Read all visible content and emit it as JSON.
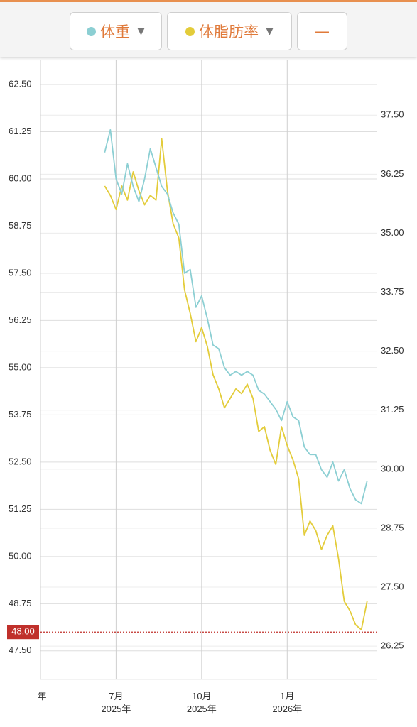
{
  "toolbar": {
    "button": "—"
  },
  "chart_data": {
    "type": "line",
    "categories": [
      "年",
      null,
      null,
      null,
      null,
      null,
      null,
      null,
      null,
      null,
      null,
      null,
      null,
      "7月\n2025年",
      null,
      null,
      null,
      null,
      null,
      null,
      null,
      null,
      null,
      null,
      null,
      null,
      null,
      null,
      "10月\n2025年",
      null,
      null,
      null,
      null,
      null,
      null,
      null,
      null,
      null,
      null,
      null,
      null,
      null,
      null,
      "1月\n2026年",
      null,
      null,
      null,
      null,
      null,
      null,
      null,
      null,
      null,
      null,
      null,
      null,
      null,
      null,
      null
    ],
    "series": [
      {
        "name": "体重",
        "color": "#8ccfd3",
        "values": [
          null,
          null,
          null,
          null,
          null,
          null,
          null,
          null,
          null,
          null,
          null,
          60.7,
          61.3,
          60.0,
          59.6,
          60.4,
          59.8,
          59.4,
          60.0,
          60.8,
          60.3,
          59.8,
          59.6,
          59.1,
          58.8,
          57.5,
          57.6,
          56.6,
          56.9,
          56.3,
          55.6,
          55.5,
          55.0,
          54.8,
          54.9,
          54.8,
          54.9,
          54.8,
          54.4,
          54.3,
          54.1,
          53.9,
          53.6,
          54.1,
          53.7,
          53.6,
          52.9,
          52.7,
          52.7,
          52.3,
          52.1,
          52.5,
          52.0,
          52.3,
          51.8,
          51.5,
          51.4,
          52.0,
          null
        ]
      },
      {
        "name": "体脂肪率",
        "color": "#e3cc3a",
        "axis": "y2",
        "values": [
          null,
          null,
          null,
          null,
          null,
          null,
          null,
          null,
          null,
          null,
          null,
          36.0,
          35.8,
          35.5,
          36.0,
          35.7,
          36.3,
          35.9,
          35.6,
          35.8,
          35.7,
          37.0,
          35.9,
          35.2,
          34.9,
          33.8,
          33.3,
          32.7,
          33.0,
          32.6,
          32.0,
          31.7,
          31.3,
          31.5,
          31.7,
          31.6,
          31.8,
          31.5,
          30.8,
          30.9,
          30.4,
          30.1,
          30.9,
          30.5,
          30.2,
          29.8,
          28.6,
          28.9,
          28.7,
          28.3,
          28.6,
          28.8,
          28.1,
          27.2,
          27.0,
          26.7,
          26.6,
          27.2,
          null
        ]
      }
    ],
    "ylim": [
      46.75,
      63.0
    ],
    "yticks": [
      {
        "value": 47.5,
        "label": "47.50"
      },
      {
        "value": 48.75,
        "label": "48.75"
      },
      {
        "value": 50,
        "label": "50.00"
      },
      {
        "value": 51.25,
        "label": "51.25"
      },
      {
        "value": 52.5,
        "label": "52.50"
      },
      {
        "value": 53.75,
        "label": "53.75"
      },
      {
        "value": 55,
        "label": "55.00"
      },
      {
        "value": 56.25,
        "label": "56.25"
      },
      {
        "value": 57.5,
        "label": "57.50"
      },
      {
        "value": 58.75,
        "label": "58.75"
      },
      {
        "value": 60,
        "label": "60.00"
      },
      {
        "value": 61.25,
        "label": "61.25"
      },
      {
        "value": 62.5,
        "label": "62.50"
      }
    ],
    "y2lim": [
      25.55,
      38.55
    ],
    "y2ticks": [
      {
        "value": 26.25,
        "label": "26.25"
      },
      {
        "value": 27.5,
        "label": "27.50"
      },
      {
        "value": 28.75,
        "label": "28.75"
      },
      {
        "value": 30,
        "label": "30.00"
      },
      {
        "value": 31.25,
        "label": "31.25"
      },
      {
        "value": 32.5,
        "label": "32.50"
      },
      {
        "value": 33.75,
        "label": "33.75"
      },
      {
        "value": 35,
        "label": "35.00"
      },
      {
        "value": 36.25,
        "label": "36.25"
      },
      {
        "value": 37.5,
        "label": "37.50"
      }
    ],
    "target": {
      "value": 48,
      "label": "48.00",
      "color": "#c0302b"
    },
    "grid": true
  }
}
